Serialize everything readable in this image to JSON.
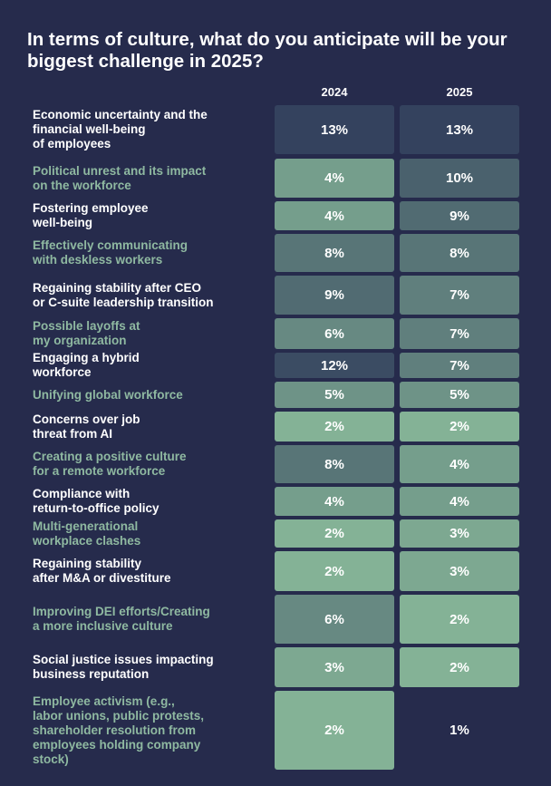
{
  "title": "In terms of culture, what do you anticipate will be your biggest challenge in 2025?",
  "columns": [
    "2024",
    "2025"
  ],
  "colors": {
    "background": "#262b4c",
    "label_white": "#ffffff",
    "label_green": "#8fb9a1"
  },
  "chart_data": {
    "type": "table",
    "title": "In terms of culture, what do you anticipate will be your biggest challenge in 2025?",
    "unit": "%",
    "series": [
      {
        "name": "2024",
        "values": [
          13,
          4,
          4,
          8,
          9,
          6,
          12,
          5,
          2,
          8,
          4,
          2,
          2,
          6,
          3,
          2
        ]
      },
      {
        "name": "2025",
        "values": [
          13,
          10,
          9,
          8,
          7,
          7,
          7,
          5,
          2,
          4,
          4,
          3,
          3,
          2,
          2,
          1
        ]
      }
    ],
    "rows": [
      {
        "label": "Economic uncertainty and the financial well-being of employees",
        "lines": [
          "Economic uncertainty and the",
          "financial well-being",
          "of employees"
        ],
        "v2024": "13%",
        "v2025": "13%"
      },
      {
        "label": "Political unrest and its impact on the workforce",
        "lines": [
          "Political unrest and its impact",
          "on the workforce"
        ],
        "v2024": "4%",
        "v2025": "10%"
      },
      {
        "label": "Fostering employee well-being",
        "lines": [
          "Fostering employee",
          "well-being"
        ],
        "v2024": "4%",
        "v2025": "9%"
      },
      {
        "label": "Effectively communicating with deskless workers",
        "lines": [
          "Effectively communicating",
          "with deskless workers"
        ],
        "v2024": "8%",
        "v2025": "8%"
      },
      {
        "label": "Regaining stability after CEO or C-suite leadership transition",
        "lines": [
          "Regaining stability after CEO",
          "or C-suite leadership transition"
        ],
        "v2024": "9%",
        "v2025": "7%"
      },
      {
        "label": "Possible layoffs at my organization",
        "lines": [
          "Possible layoffs at",
          "my organization"
        ],
        "v2024": "6%",
        "v2025": "7%"
      },
      {
        "label": "Engaging a hybrid workforce",
        "lines": [
          "Engaging a hybrid",
          "workforce"
        ],
        "v2024": "12%",
        "v2025": "7%"
      },
      {
        "label": "Unifying global workforce",
        "lines": [
          "Unifying global workforce"
        ],
        "v2024": "5%",
        "v2025": "5%"
      },
      {
        "label": "Concerns over job threat from AI",
        "lines": [
          "Concerns over job",
          "threat from AI"
        ],
        "v2024": "2%",
        "v2025": "2%"
      },
      {
        "label": "Creating a positive culture for a remote workforce",
        "lines": [
          "Creating a positive culture",
          "for a remote workforce"
        ],
        "v2024": "8%",
        "v2025": "4%"
      },
      {
        "label": "Compliance with return-to-office policy",
        "lines": [
          "Compliance with",
          "return-to-office policy"
        ],
        "v2024": "4%",
        "v2025": "4%"
      },
      {
        "label": "Multi-generational workplace clashes",
        "lines": [
          "Multi-generational",
          "workplace clashes"
        ],
        "v2024": "2%",
        "v2025": "3%"
      },
      {
        "label": "Regaining stability after M&A or divestiture",
        "lines": [
          "Regaining stability",
          "after M&A or divestiture"
        ],
        "v2024": "2%",
        "v2025": "3%"
      },
      {
        "label": "Improving DEI efforts/Creating a more inclusive culture",
        "lines": [
          "Improving DEI efforts/Creating",
          "a more inclusive culture"
        ],
        "v2024": "6%",
        "v2025": "2%"
      },
      {
        "label": "Social justice issues impacting business reputation",
        "lines": [
          "Social justice issues impacting",
          "business reputation"
        ],
        "v2024": "3%",
        "v2025": "2%"
      },
      {
        "label": "Employee activism (e.g., labor unions, public protests, shareholder resolution from employees holding company stock)",
        "lines": [
          "Employee activism (e.g.,",
          "labor unions, public protests,",
          "shareholder resolution from",
          "employees holding company",
          "stock)"
        ],
        "v2024": "2%",
        "v2025": "1%"
      }
    ]
  }
}
